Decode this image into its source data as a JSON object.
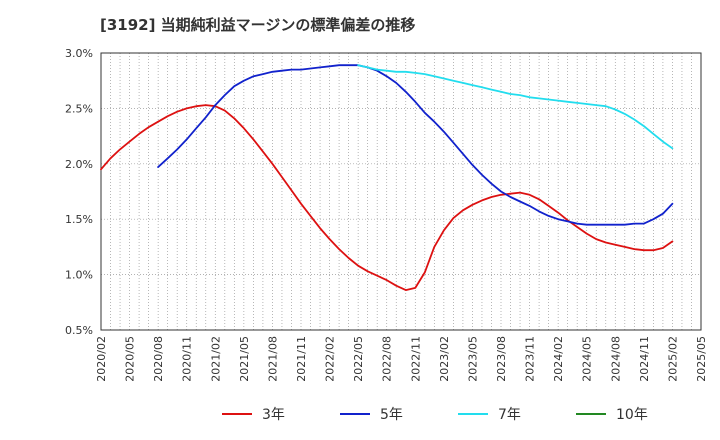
{
  "chart_data": {
    "type": "line",
    "title": "[3192]  当期純利益マージンの標準偏差の推移",
    "xlabel": "",
    "ylabel": "",
    "ylim": [
      0.5,
      3.0
    ],
    "y_ticks": [
      "0.5%",
      "1.0%",
      "1.5%",
      "2.0%",
      "2.5%",
      "3.0%"
    ],
    "y_tick_values": [
      0.5,
      1.0,
      1.5,
      2.0,
      2.5,
      3.0
    ],
    "x_ticks": [
      "2020/02",
      "2020/05",
      "2020/08",
      "2020/11",
      "2021/02",
      "2021/05",
      "2021/08",
      "2021/11",
      "2022/02",
      "2022/05",
      "2022/08",
      "2022/11",
      "2023/02",
      "2023/05",
      "2023/08",
      "2023/11",
      "2024/02",
      "2024/05",
      "2024/08",
      "2024/11",
      "2025/02",
      "2025/05"
    ],
    "grid": true,
    "legend_position": "bottom",
    "colors": {
      "3年": "#dd1111",
      "5年": "#1122cc",
      "7年": "#22ddee",
      "10年": "#228822"
    },
    "series": [
      {
        "name": "3年",
        "color": "#dd1111",
        "x": [
          "2020/02",
          "2020/03",
          "2020/04",
          "2020/05",
          "2020/06",
          "2020/07",
          "2020/08",
          "2020/09",
          "2020/10",
          "2020/11",
          "2020/12",
          "2021/01",
          "2021/02",
          "2021/03",
          "2021/04",
          "2021/05",
          "2021/06",
          "2021/07",
          "2021/08",
          "2021/09",
          "2021/10",
          "2021/11",
          "2021/12",
          "2022/01",
          "2022/02",
          "2022/03",
          "2022/04",
          "2022/05",
          "2022/06",
          "2022/07",
          "2022/08",
          "2022/09",
          "2022/10",
          "2022/11",
          "2022/12",
          "2023/01",
          "2023/02",
          "2023/03",
          "2023/04",
          "2023/05",
          "2023/06",
          "2023/07",
          "2023/08",
          "2023/09",
          "2023/10",
          "2023/11",
          "2023/12",
          "2024/01",
          "2024/02",
          "2024/03",
          "2024/04",
          "2024/05",
          "2024/06",
          "2024/07",
          "2024/08",
          "2024/09",
          "2024/10",
          "2024/11",
          "2024/12",
          "2025/01",
          "2025/02"
        ],
        "values": [
          1.95,
          2.05,
          2.13,
          2.2,
          2.27,
          2.33,
          2.38,
          2.43,
          2.47,
          2.5,
          2.52,
          2.53,
          2.52,
          2.48,
          2.41,
          2.32,
          2.22,
          2.11,
          2.0,
          1.88,
          1.76,
          1.64,
          1.53,
          1.42,
          1.32,
          1.23,
          1.15,
          1.08,
          1.03,
          0.99,
          0.95,
          0.9,
          0.86,
          0.88,
          1.02,
          1.25,
          1.4,
          1.51,
          1.58,
          1.63,
          1.67,
          1.7,
          1.72,
          1.73,
          1.74,
          1.72,
          1.68,
          1.62,
          1.56,
          1.49,
          1.43,
          1.37,
          1.32,
          1.29,
          1.27,
          1.25,
          1.23,
          1.22,
          1.22,
          1.24,
          1.3
        ]
      },
      {
        "name": "5年",
        "color": "#1122cc",
        "x": [
          "2020/08",
          "2020/09",
          "2020/10",
          "2020/11",
          "2020/12",
          "2021/01",
          "2021/02",
          "2021/03",
          "2021/04",
          "2021/05",
          "2021/06",
          "2021/07",
          "2021/08",
          "2021/09",
          "2021/10",
          "2021/11",
          "2021/12",
          "2022/01",
          "2022/02",
          "2022/03",
          "2022/04",
          "2022/05",
          "2022/06",
          "2022/07",
          "2022/08",
          "2022/09",
          "2022/10",
          "2022/11",
          "2022/12",
          "2023/01",
          "2023/02",
          "2023/03",
          "2023/04",
          "2023/05",
          "2023/06",
          "2023/07",
          "2023/08",
          "2023/09",
          "2023/10",
          "2023/11",
          "2023/12",
          "2024/01",
          "2024/02",
          "2024/03",
          "2024/04",
          "2024/05",
          "2024/06",
          "2024/07",
          "2024/08",
          "2024/09",
          "2024/10",
          "2024/11",
          "2024/12",
          "2025/01",
          "2025/02"
        ],
        "values": [
          1.97,
          2.05,
          2.13,
          2.22,
          2.32,
          2.42,
          2.53,
          2.62,
          2.7,
          2.75,
          2.79,
          2.81,
          2.83,
          2.84,
          2.85,
          2.85,
          2.86,
          2.87,
          2.88,
          2.89,
          2.89,
          2.89,
          2.87,
          2.84,
          2.79,
          2.73,
          2.65,
          2.56,
          2.46,
          2.38,
          2.29,
          2.19,
          2.09,
          1.99,
          1.9,
          1.82,
          1.75,
          1.7,
          1.66,
          1.62,
          1.57,
          1.53,
          1.5,
          1.48,
          1.46,
          1.45,
          1.45,
          1.45,
          1.45,
          1.45,
          1.46,
          1.46,
          1.5,
          1.55,
          1.64
        ]
      },
      {
        "name": "7年",
        "color": "#22ddee",
        "x": [
          "2022/05",
          "2022/06",
          "2022/07",
          "2022/08",
          "2022/09",
          "2022/10",
          "2022/11",
          "2022/12",
          "2023/01",
          "2023/02",
          "2023/03",
          "2023/04",
          "2023/05",
          "2023/06",
          "2023/07",
          "2023/08",
          "2023/09",
          "2023/10",
          "2023/11",
          "2023/12",
          "2024/01",
          "2024/02",
          "2024/03",
          "2024/04",
          "2024/05",
          "2024/06",
          "2024/07",
          "2024/08",
          "2024/09",
          "2024/10",
          "2024/11",
          "2024/12",
          "2025/01",
          "2025/02"
        ],
        "values": [
          2.89,
          2.87,
          2.85,
          2.84,
          2.83,
          2.83,
          2.82,
          2.81,
          2.79,
          2.77,
          2.75,
          2.73,
          2.71,
          2.69,
          2.67,
          2.65,
          2.63,
          2.62,
          2.6,
          2.59,
          2.58,
          2.57,
          2.56,
          2.55,
          2.54,
          2.53,
          2.52,
          2.49,
          2.45,
          2.4,
          2.34,
          2.27,
          2.2,
          2.14
        ]
      },
      {
        "name": "10年",
        "color": "#228822",
        "x": [],
        "values": []
      }
    ]
  }
}
